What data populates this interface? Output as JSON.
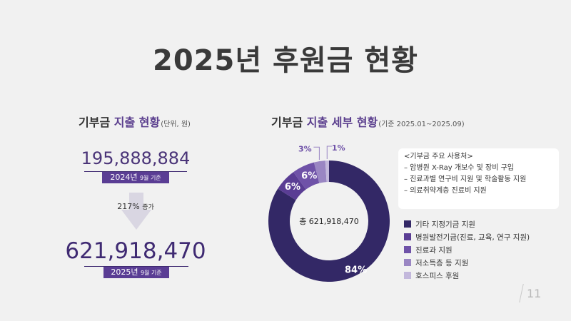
{
  "title": "2025년 후원금 현황",
  "left": {
    "heading_prefix": "기부금 ",
    "heading_highlight": "지출 현황",
    "heading_unit": "(단위, 원)",
    "amount_2024": "195,888,884",
    "label_2024_main": "2024년",
    "label_2024_sub": "9월 기준",
    "increase_main": "217%",
    "increase_sub": "증가",
    "amount_2025": "621,918,470",
    "label_2025_main": "2025년",
    "label_2025_sub": "9월 기준"
  },
  "right": {
    "heading_prefix": "기부금 ",
    "heading_highlight": "지출 세부 현황",
    "heading_unit": "(기준 2025.01~2025.09)",
    "center_label": "총 621,918,470",
    "note_title": "<기부금 주요 사용처>",
    "note_items": [
      "– 암병원 X-Ray 개보수 및 장비 구입",
      "– 진료과별 연구비 지원 및 학술활동 지원",
      "– 의료취약계층 진료비 지원"
    ]
  },
  "chart_data": {
    "type": "pie",
    "title": "",
    "categories": [
      "기타 지정기금 지원",
      "병원발전기금(진료, 교육, 연구 지원)",
      "진료과 지원",
      "저소득층 등 지원",
      "호스피스 후원"
    ],
    "values": [
      84,
      6,
      6,
      3,
      1
    ],
    "value_labels": [
      "84%",
      "6%",
      "6%",
      "3%",
      "1%"
    ],
    "colors": [
      "#332866",
      "#5a3d94",
      "#6f52a8",
      "#9a86c3",
      "#c3b8dc"
    ],
    "legend": "right"
  },
  "colors": {
    "accent": "#5b3f8e",
    "tag_bg": "#5a3d94",
    "arrow": "#d9d6e2"
  },
  "page_number": "11"
}
